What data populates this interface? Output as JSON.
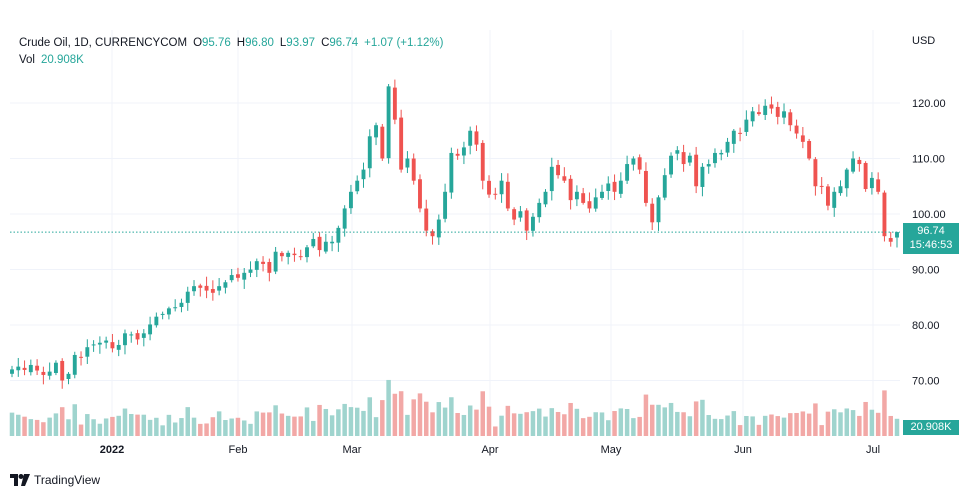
{
  "legend": {
    "symbol": "Crude Oil, 1D, CURRENCYCOM",
    "open_label": "O",
    "open": "95.76",
    "high_label": "H",
    "high": "96.80",
    "low_label": "L",
    "low": "93.97",
    "close_label": "C",
    "close": "96.74",
    "change": "+1.07 (+1.12%)",
    "vol_label": "Vol",
    "vol": "20.908K"
  },
  "currency": "USD",
  "last_price": {
    "price": "96.74",
    "countdown": "15:46:53"
  },
  "volume_tag": "20.908K",
  "brand": "TradingView",
  "colors": {
    "up": "#26a69a",
    "down": "#ef5350",
    "vol_up": "#9fd4ce",
    "vol_down": "#f2a8a6",
    "grid": "#f0f3fa"
  },
  "chart_data": {
    "type": "candlestick",
    "title": "Crude Oil, 1D, CURRENCYCOM",
    "y_axis": {
      "ticks": [
        "70.00",
        "80.00",
        "90.00",
        "100.00",
        "110.00",
        "120.00"
      ],
      "range": [
        60,
        128
      ],
      "unit": "USD",
      "position": "right"
    },
    "x_axis": {
      "ticks": [
        "2022",
        "Feb",
        "Mar",
        "Apr",
        "May",
        "Jun",
        "Jul"
      ]
    },
    "grid": true,
    "close_prices": [
      72.0,
      72.5,
      71.9,
      72.8,
      71.8,
      71.0,
      71.6,
      73.2,
      70.0,
      71.2,
      74.6,
      74.2,
      76.0,
      76.5,
      76.8,
      77.2,
      75.8,
      76.4,
      78.5,
      78.3,
      77.4,
      78.5,
      80.1,
      81.5,
      82.0,
      83.0,
      83.2,
      84.0,
      86.0,
      87.0,
      86.7,
      86.2,
      85.8,
      87.0,
      87.7,
      89.0,
      88.5,
      89.4,
      90.0,
      91.5,
      91.0,
      89.4,
      93.2,
      92.4,
      93.0,
      92.6,
      92.3,
      94.0,
      95.5,
      93.5,
      95.0,
      95.0,
      97.5,
      101.0,
      104.0,
      106.0,
      108.0,
      114.0,
      116.0,
      110.0,
      123.0,
      117.0,
      108.0,
      110.0,
      106.0,
      101.0,
      97.0,
      96.0,
      99.0,
      104.0,
      111.0,
      110.5,
      112.0,
      115.0,
      112.5,
      106.0,
      103.5,
      103.5,
      106.0,
      101.0,
      99.0,
      100.5,
      97.0,
      99.5,
      102.0,
      104.0,
      108.5,
      107.0,
      106.0,
      102.5,
      104.0,
      102.0,
      101.0,
      103.0,
      104.0,
      105.5,
      104.0,
      106.0,
      109.0,
      110.0,
      108.0,
      102.0,
      98.5,
      103.0,
      107.0,
      110.5,
      111.5,
      109.0,
      110.5,
      105.0,
      108.5,
      109.0,
      111.0,
      111.0,
      113.0,
      115.0,
      114.5,
      117.0,
      118.5,
      118.0,
      119.5,
      119.0,
      117.5,
      118.5,
      116.0,
      114.5,
      113.0,
      110.0,
      105.0,
      105.0,
      101.5,
      104.0,
      105.0,
      108.0,
      110.0,
      109.0,
      104.5,
      106.5,
      104.0,
      96.0,
      95.0,
      96.74
    ],
    "volume": {
      "unit": "relative",
      "last": "20.908K"
    }
  }
}
